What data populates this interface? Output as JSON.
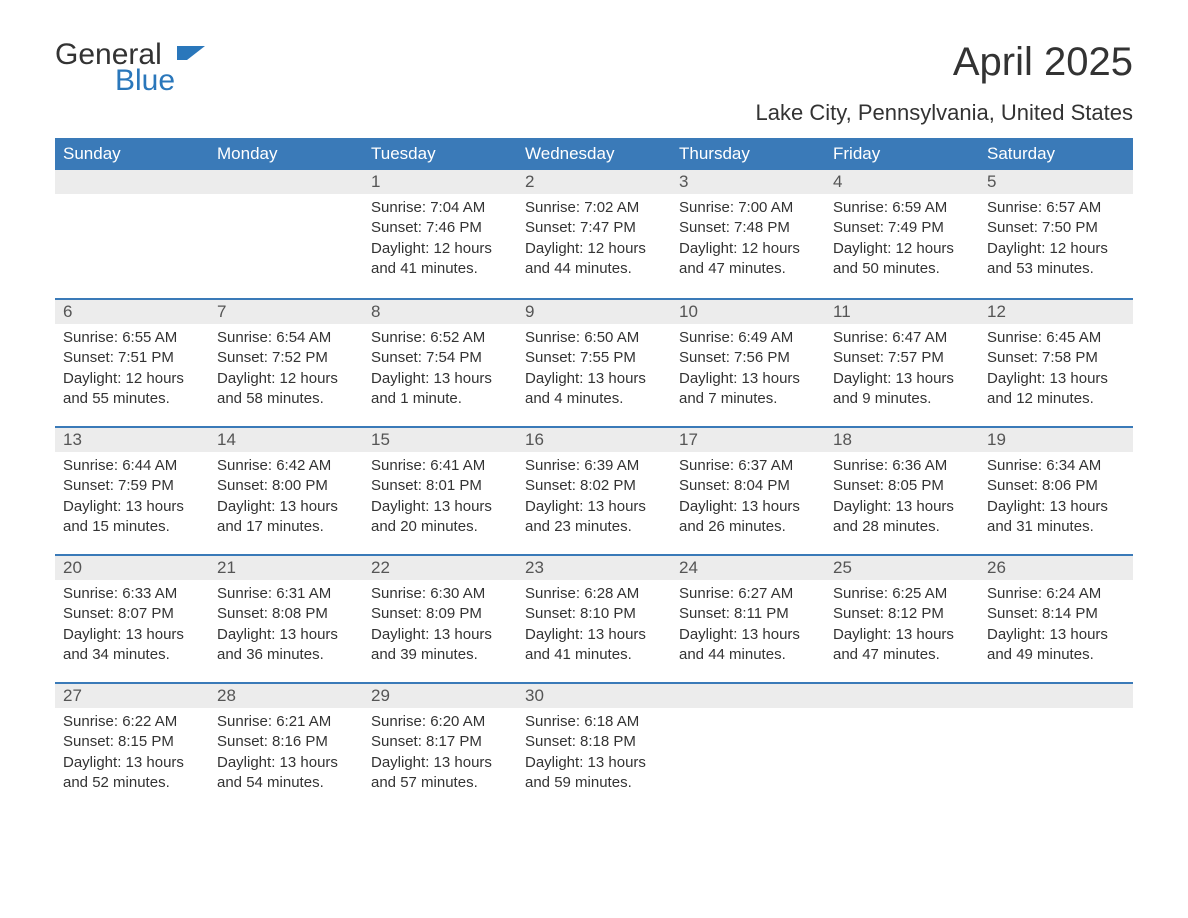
{
  "logo": {
    "general": "General",
    "blue": "Blue",
    "flag_color": "#2a77bb"
  },
  "title": "April 2025",
  "location": "Lake City, Pennsylvania, United States",
  "colors": {
    "header_bg": "#3a7ab8",
    "header_text": "#ffffff",
    "daynum_bg": "#ececec",
    "text": "#333333",
    "week_border": "#3a7ab8"
  },
  "typography": {
    "title_fontsize": 40,
    "location_fontsize": 22,
    "dow_fontsize": 17,
    "daynum_fontsize": 17,
    "body_fontsize": 15
  },
  "days_of_week": [
    "Sunday",
    "Monday",
    "Tuesday",
    "Wednesday",
    "Thursday",
    "Friday",
    "Saturday"
  ],
  "weeks": [
    [
      {
        "n": "",
        "sunrise": "",
        "sunset": "",
        "daylight": ""
      },
      {
        "n": "",
        "sunrise": "",
        "sunset": "",
        "daylight": ""
      },
      {
        "n": "1",
        "sunrise": "Sunrise: 7:04 AM",
        "sunset": "Sunset: 7:46 PM",
        "daylight": "Daylight: 12 hours and 41 minutes."
      },
      {
        "n": "2",
        "sunrise": "Sunrise: 7:02 AM",
        "sunset": "Sunset: 7:47 PM",
        "daylight": "Daylight: 12 hours and 44 minutes."
      },
      {
        "n": "3",
        "sunrise": "Sunrise: 7:00 AM",
        "sunset": "Sunset: 7:48 PM",
        "daylight": "Daylight: 12 hours and 47 minutes."
      },
      {
        "n": "4",
        "sunrise": "Sunrise: 6:59 AM",
        "sunset": "Sunset: 7:49 PM",
        "daylight": "Daylight: 12 hours and 50 minutes."
      },
      {
        "n": "5",
        "sunrise": "Sunrise: 6:57 AM",
        "sunset": "Sunset: 7:50 PM",
        "daylight": "Daylight: 12 hours and 53 minutes."
      }
    ],
    [
      {
        "n": "6",
        "sunrise": "Sunrise: 6:55 AM",
        "sunset": "Sunset: 7:51 PM",
        "daylight": "Daylight: 12 hours and 55 minutes."
      },
      {
        "n": "7",
        "sunrise": "Sunrise: 6:54 AM",
        "sunset": "Sunset: 7:52 PM",
        "daylight": "Daylight: 12 hours and 58 minutes."
      },
      {
        "n": "8",
        "sunrise": "Sunrise: 6:52 AM",
        "sunset": "Sunset: 7:54 PM",
        "daylight": "Daylight: 13 hours and 1 minute."
      },
      {
        "n": "9",
        "sunrise": "Sunrise: 6:50 AM",
        "sunset": "Sunset: 7:55 PM",
        "daylight": "Daylight: 13 hours and 4 minutes."
      },
      {
        "n": "10",
        "sunrise": "Sunrise: 6:49 AM",
        "sunset": "Sunset: 7:56 PM",
        "daylight": "Daylight: 13 hours and 7 minutes."
      },
      {
        "n": "11",
        "sunrise": "Sunrise: 6:47 AM",
        "sunset": "Sunset: 7:57 PM",
        "daylight": "Daylight: 13 hours and 9 minutes."
      },
      {
        "n": "12",
        "sunrise": "Sunrise: 6:45 AM",
        "sunset": "Sunset: 7:58 PM",
        "daylight": "Daylight: 13 hours and 12 minutes."
      }
    ],
    [
      {
        "n": "13",
        "sunrise": "Sunrise: 6:44 AM",
        "sunset": "Sunset: 7:59 PM",
        "daylight": "Daylight: 13 hours and 15 minutes."
      },
      {
        "n": "14",
        "sunrise": "Sunrise: 6:42 AM",
        "sunset": "Sunset: 8:00 PM",
        "daylight": "Daylight: 13 hours and 17 minutes."
      },
      {
        "n": "15",
        "sunrise": "Sunrise: 6:41 AM",
        "sunset": "Sunset: 8:01 PM",
        "daylight": "Daylight: 13 hours and 20 minutes."
      },
      {
        "n": "16",
        "sunrise": "Sunrise: 6:39 AM",
        "sunset": "Sunset: 8:02 PM",
        "daylight": "Daylight: 13 hours and 23 minutes."
      },
      {
        "n": "17",
        "sunrise": "Sunrise: 6:37 AM",
        "sunset": "Sunset: 8:04 PM",
        "daylight": "Daylight: 13 hours and 26 minutes."
      },
      {
        "n": "18",
        "sunrise": "Sunrise: 6:36 AM",
        "sunset": "Sunset: 8:05 PM",
        "daylight": "Daylight: 13 hours and 28 minutes."
      },
      {
        "n": "19",
        "sunrise": "Sunrise: 6:34 AM",
        "sunset": "Sunset: 8:06 PM",
        "daylight": "Daylight: 13 hours and 31 minutes."
      }
    ],
    [
      {
        "n": "20",
        "sunrise": "Sunrise: 6:33 AM",
        "sunset": "Sunset: 8:07 PM",
        "daylight": "Daylight: 13 hours and 34 minutes."
      },
      {
        "n": "21",
        "sunrise": "Sunrise: 6:31 AM",
        "sunset": "Sunset: 8:08 PM",
        "daylight": "Daylight: 13 hours and 36 minutes."
      },
      {
        "n": "22",
        "sunrise": "Sunrise: 6:30 AM",
        "sunset": "Sunset: 8:09 PM",
        "daylight": "Daylight: 13 hours and 39 minutes."
      },
      {
        "n": "23",
        "sunrise": "Sunrise: 6:28 AM",
        "sunset": "Sunset: 8:10 PM",
        "daylight": "Daylight: 13 hours and 41 minutes."
      },
      {
        "n": "24",
        "sunrise": "Sunrise: 6:27 AM",
        "sunset": "Sunset: 8:11 PM",
        "daylight": "Daylight: 13 hours and 44 minutes."
      },
      {
        "n": "25",
        "sunrise": "Sunrise: 6:25 AM",
        "sunset": "Sunset: 8:12 PM",
        "daylight": "Daylight: 13 hours and 47 minutes."
      },
      {
        "n": "26",
        "sunrise": "Sunrise: 6:24 AM",
        "sunset": "Sunset: 8:14 PM",
        "daylight": "Daylight: 13 hours and 49 minutes."
      }
    ],
    [
      {
        "n": "27",
        "sunrise": "Sunrise: 6:22 AM",
        "sunset": "Sunset: 8:15 PM",
        "daylight": "Daylight: 13 hours and 52 minutes."
      },
      {
        "n": "28",
        "sunrise": "Sunrise: 6:21 AM",
        "sunset": "Sunset: 8:16 PM",
        "daylight": "Daylight: 13 hours and 54 minutes."
      },
      {
        "n": "29",
        "sunrise": "Sunrise: 6:20 AM",
        "sunset": "Sunset: 8:17 PM",
        "daylight": "Daylight: 13 hours and 57 minutes."
      },
      {
        "n": "30",
        "sunrise": "Sunrise: 6:18 AM",
        "sunset": "Sunset: 8:18 PM",
        "daylight": "Daylight: 13 hours and 59 minutes."
      },
      {
        "n": "",
        "sunrise": "",
        "sunset": "",
        "daylight": ""
      },
      {
        "n": "",
        "sunrise": "",
        "sunset": "",
        "daylight": ""
      },
      {
        "n": "",
        "sunrise": "",
        "sunset": "",
        "daylight": ""
      }
    ]
  ]
}
